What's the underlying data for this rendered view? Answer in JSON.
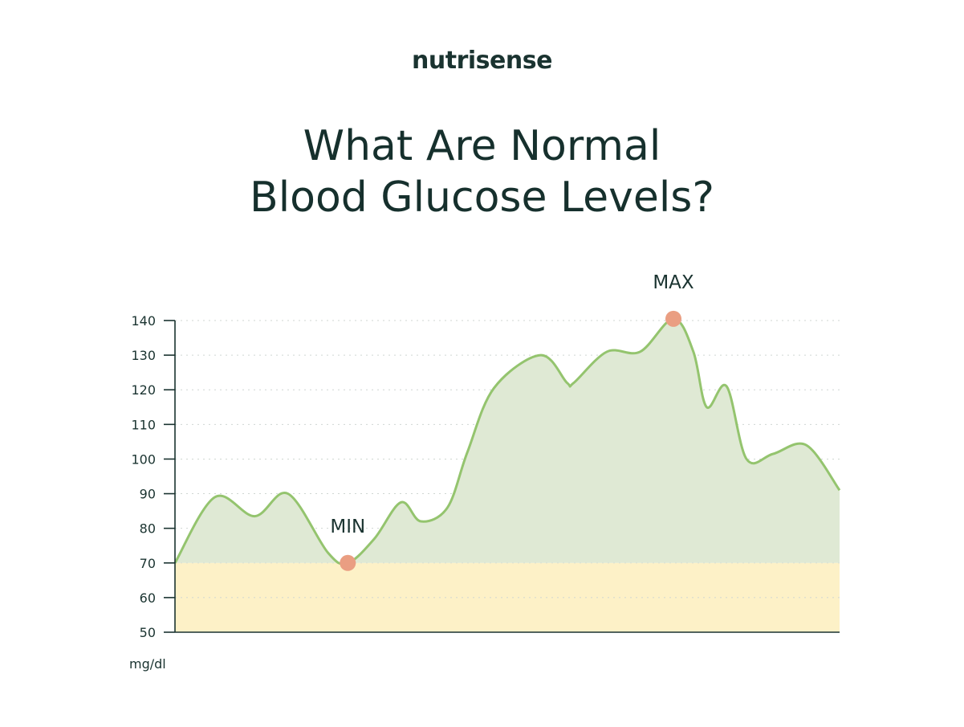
{
  "brand": {
    "logo_text": "nutrisense"
  },
  "title": {
    "line1": "What Are Normal",
    "line2": "Blood Glucose Levels?"
  },
  "colors": {
    "line": "#94c46e",
    "area_fill": "#dfe9d4",
    "low_zone": "#fdf1c7",
    "marker": "#ea9e82",
    "axis": "#1a3330",
    "grid": "#cfd6d2"
  },
  "chart_data": {
    "type": "area",
    "title": "",
    "xlabel": "",
    "ylabel": "mg/dl",
    "ylim": [
      50,
      140
    ],
    "yticks": [
      "140",
      "130",
      "120",
      "110",
      "100",
      "90",
      "80",
      "70",
      "60",
      "50"
    ],
    "grid": "horizontal dotted",
    "low_zone": [
      50,
      70
    ],
    "x": [
      0,
      0.06,
      0.12,
      0.17,
      0.23,
      0.26,
      0.3,
      0.34,
      0.37,
      0.41,
      0.44,
      0.48,
      0.55,
      0.59,
      0.6,
      0.65,
      0.7,
      0.75,
      0.78,
      0.8,
      0.83,
      0.86,
      0.9,
      0.95,
      1.0
    ],
    "series": [
      {
        "values": [
          70,
          89,
          83.5,
          90,
          73,
          70,
          77,
          87.5,
          82,
          86,
          102,
          120.5,
          130,
          122,
          122,
          131,
          131,
          140.5,
          131,
          115,
          121,
          100,
          101.5,
          104,
          91
        ]
      }
    ],
    "annotations": [
      {
        "label": "MIN",
        "x": 0.26,
        "y": 70
      },
      {
        "label": "MAX",
        "x": 0.75,
        "y": 140.5
      }
    ]
  }
}
